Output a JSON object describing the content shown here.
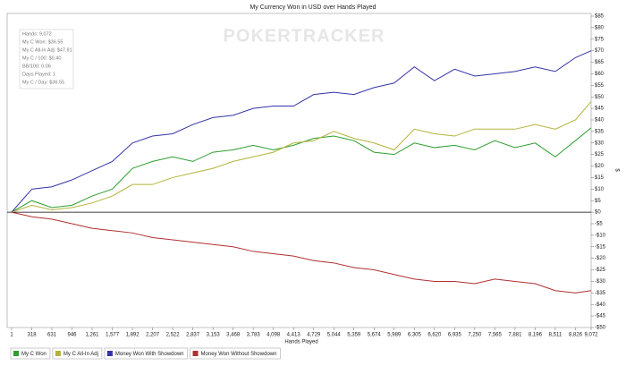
{
  "chart_data": {
    "type": "line",
    "title": "My Currency Won in USD over Hands Played",
    "x_label": "Hands Played",
    "y_label": "$",
    "watermark": "POKERTRACKER",
    "stats": [
      "Hands: 9,072",
      "My C Won: $36.55",
      "My C All-In Adj: $47.91",
      "My C / 100: $0.40",
      "BB/100: 0.06",
      "Days Played: 1",
      "My C / Day: $36.55"
    ],
    "x": [
      1,
      318,
      631,
      946,
      1261,
      1577,
      1892,
      2207,
      2522,
      2837,
      3153,
      3468,
      3783,
      4098,
      4413,
      4729,
      5044,
      5359,
      5674,
      5989,
      6305,
      6620,
      6935,
      7250,
      7565,
      7881,
      8196,
      8511,
      8826,
      9072
    ],
    "series": [
      {
        "name": "My C Won",
        "color": "#2e9e2e",
        "values": [
          0,
          5,
          2,
          3,
          7,
          10,
          19,
          22,
          24,
          22,
          26,
          27,
          29,
          27,
          29,
          32,
          33,
          31,
          26,
          25,
          30,
          28,
          29,
          27,
          31,
          28,
          30,
          24,
          31,
          36.55
        ]
      },
      {
        "name": "My C All-In Adj",
        "color": "#b3b33a",
        "values": [
          0,
          3,
          1,
          2,
          4,
          7,
          12,
          12,
          15,
          17,
          19,
          22,
          24,
          26,
          30,
          31,
          35,
          32,
          30,
          27,
          36,
          34,
          33,
          36,
          36,
          36,
          38,
          36,
          40,
          47.91
        ]
      },
      {
        "name": "Money Won With Showdown",
        "color": "#3434a8",
        "values": [
          0,
          10,
          11,
          14,
          18,
          22,
          30,
          33,
          34,
          38,
          41,
          42,
          45,
          46,
          46,
          51,
          52,
          51,
          54,
          56,
          63,
          57,
          62,
          59,
          60,
          61,
          63,
          61,
          67,
          70
        ]
      },
      {
        "name": "Money Won Without Showdown",
        "color": "#b03030",
        "values": [
          0,
          -2,
          -3,
          -5,
          -7,
          -8,
          -9,
          -11,
          -12,
          -13,
          -14,
          -15,
          -17,
          -18,
          -19,
          -21,
          -22,
          -24,
          -25,
          -27,
          -29,
          -30,
          -30,
          -31,
          -29,
          -30,
          -31,
          -34,
          -35,
          -34
        ]
      }
    ],
    "xlim": [
      1,
      9072
    ],
    "xticks": [
      1,
      318,
      631,
      946,
      {
        "value": 1261,
        "label": "1,261"
      },
      {
        "value": 1577,
        "label": "1,577"
      },
      {
        "value": 1892,
        "label": "1,892"
      },
      {
        "value": 2207,
        "label": "2,207"
      },
      {
        "value": 2522,
        "label": "2,522"
      },
      {
        "value": 2837,
        "label": "2,837"
      },
      {
        "value": 3153,
        "label": "3,153"
      },
      {
        "value": 3468,
        "label": "3,468"
      },
      {
        "value": 3783,
        "label": "3,783"
      },
      {
        "value": 4098,
        "label": "4,098"
      },
      {
        "value": 4413,
        "label": "4,413"
      },
      {
        "value": 4729,
        "label": "4,729"
      },
      {
        "value": 5044,
        "label": "5,044"
      },
      {
        "value": 5359,
        "label": "5,359"
      },
      {
        "value": 5674,
        "label": "5,674"
      },
      {
        "value": 5989,
        "label": "5,989"
      },
      {
        "value": 6305,
        "label": "6,305"
      },
      {
        "value": 6620,
        "label": "6,620"
      },
      {
        "value": 6935,
        "label": "6,935"
      },
      {
        "value": 7250,
        "label": "7,250"
      },
      {
        "value": 7565,
        "label": "7,565"
      },
      {
        "value": 7881,
        "label": "7,881"
      },
      {
        "value": 8196,
        "label": "8,196"
      },
      {
        "value": 8511,
        "label": "8,511"
      },
      {
        "value": 8826,
        "label": "8,826"
      },
      {
        "value": 9072,
        "label": "9,072"
      }
    ],
    "ylim": [
      -50,
      85
    ],
    "yticks": [
      {
        "value": -50,
        "label": "-$50"
      },
      {
        "value": -45,
        "label": "-$45"
      },
      {
        "value": -40,
        "label": "-$40"
      },
      {
        "value": -35,
        "label": "-$35"
      },
      {
        "value": -30,
        "label": "-$30"
      },
      {
        "value": -25,
        "label": "-$25"
      },
      {
        "value": -20,
        "label": "-$20"
      },
      {
        "value": -15,
        "label": "-$15"
      },
      {
        "value": -10,
        "label": "-$10"
      },
      {
        "value": -5,
        "label": "-$5"
      },
      {
        "value": 0,
        "label": "$0"
      },
      {
        "value": 5,
        "label": "$5"
      },
      {
        "value": 10,
        "label": "$10"
      },
      {
        "value": 15,
        "label": "$15"
      },
      {
        "value": 20,
        "label": "$20"
      },
      {
        "value": 25,
        "label": "$25"
      },
      {
        "value": 30,
        "label": "$30"
      },
      {
        "value": 35,
        "label": "$35"
      },
      {
        "value": 40,
        "label": "$40"
      },
      {
        "value": 45,
        "label": "$45"
      },
      {
        "value": 50,
        "label": "$50"
      },
      {
        "value": 55,
        "label": "$55"
      },
      {
        "value": 60,
        "label": "$60"
      },
      {
        "value": 65,
        "label": "$65"
      },
      {
        "value": 70,
        "label": "$70"
      },
      {
        "value": 75,
        "label": "$75"
      },
      {
        "value": 80,
        "label": "$80"
      },
      {
        "value": 85,
        "label": "$85"
      }
    ],
    "grid": false,
    "legend": "bottom"
  }
}
